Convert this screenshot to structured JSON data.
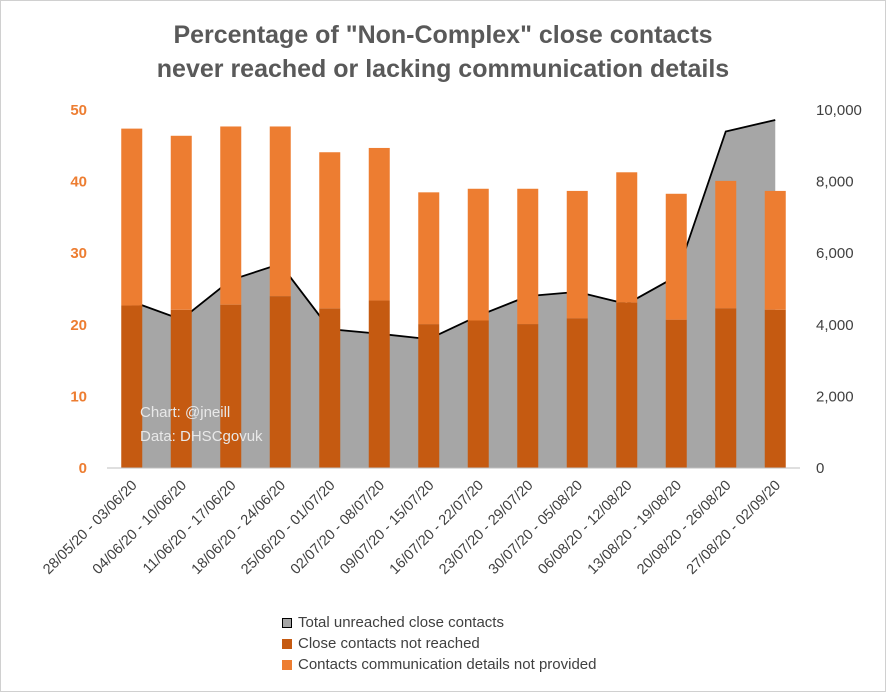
{
  "chart_data": {
    "type": "bar",
    "title": [
      "Percentage of \"Non-Complex\" close contacts",
      "never reached or lacking communication details"
    ],
    "categories": [
      "28/05/20 - 03/06/20",
      "04/06/20 - 10/06/20",
      "11/06/20 - 17/06/20",
      "18/06/20 - 24/06/20",
      "25/06/20 - 01/07/20",
      "02/07/20 - 08/07/20",
      "09/07/20 - 15/07/20",
      "16/07/20 - 22/07/20",
      "23/07/20 - 29/07/20",
      "30/07/20 - 05/08/20",
      "06/08/20 - 12/08/20",
      "13/08/20 - 19/08/20",
      "20/08/20 - 26/08/20",
      "27/08/20 - 02/09/20"
    ],
    "stacked": true,
    "series": [
      {
        "name": "Total unreached close contacts",
        "type": "area",
        "axis": "right",
        "color": "#A6A6A6",
        "values": [
          4650,
          4150,
          5250,
          5700,
          3880,
          3750,
          3600,
          4250,
          4800,
          4920,
          4580,
          5350,
          9400,
          9720
        ]
      },
      {
        "name": "Close contacts not reached",
        "type": "bar",
        "axis": "left",
        "color": "#C55A11",
        "values": [
          22.7,
          22.1,
          22.8,
          24.0,
          22.3,
          23.4,
          20.1,
          20.6,
          20.1,
          20.9,
          23.1,
          20.7,
          22.3,
          22.1
        ]
      },
      {
        "name": "Contacts communication details not provided",
        "type": "bar",
        "axis": "left",
        "color": "#ED7D31",
        "values": [
          24.7,
          24.3,
          24.9,
          23.7,
          21.8,
          21.3,
          18.4,
          18.4,
          18.9,
          17.8,
          18.2,
          17.6,
          17.8,
          16.6
        ]
      }
    ],
    "y_left": {
      "min": 0,
      "max": 50,
      "step": 10,
      "ticks": [
        "0",
        "10",
        "20",
        "30",
        "40",
        "50"
      ]
    },
    "y_right": {
      "min": 0,
      "max": 10000,
      "step": 2000,
      "ticks": [
        "0",
        "2,000",
        "4,000",
        "6,000",
        "8,000",
        "10,000"
      ]
    },
    "legend_position": "bottom",
    "grid": false,
    "annotations": [
      "Chart: @jneill",
      "Data: DHSCgovuk"
    ]
  }
}
